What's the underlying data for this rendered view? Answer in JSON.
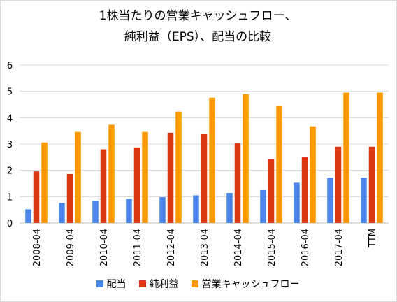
{
  "chart_data": {
    "type": "bar",
    "title_line1": "1株当たりの営業キャッシュフロー、",
    "title_line2": "純利益（EPS）、配当の比較",
    "categories": [
      "2008-04",
      "2009-04",
      "2010-04",
      "2011-04",
      "2012-04",
      "2013-04",
      "2014-04",
      "2015-04",
      "2016-04",
      "2017-04",
      "TTM"
    ],
    "series": [
      {
        "name": "配当",
        "color": "#4a86e8",
        "values": [
          0.52,
          0.76,
          0.84,
          0.92,
          0.98,
          1.05,
          1.14,
          1.25,
          1.53,
          1.72,
          1.72
        ]
      },
      {
        "name": "純利益",
        "color": "#dc3912",
        "values": [
          1.96,
          1.86,
          2.8,
          2.87,
          3.43,
          3.38,
          3.03,
          2.42,
          2.5,
          2.9,
          2.9
        ]
      },
      {
        "name": "営業キャッシュフロー",
        "color": "#ff9900",
        "values": [
          3.06,
          3.46,
          3.73,
          3.46,
          4.23,
          4.76,
          4.89,
          4.44,
          3.67,
          4.95,
          4.95
        ]
      }
    ],
    "y_ticks": [
      "0",
      "1",
      "2",
      "3",
      "4",
      "5",
      "6"
    ],
    "ylim": [
      0,
      6
    ],
    "grid": true,
    "legend_position": "bottom"
  }
}
